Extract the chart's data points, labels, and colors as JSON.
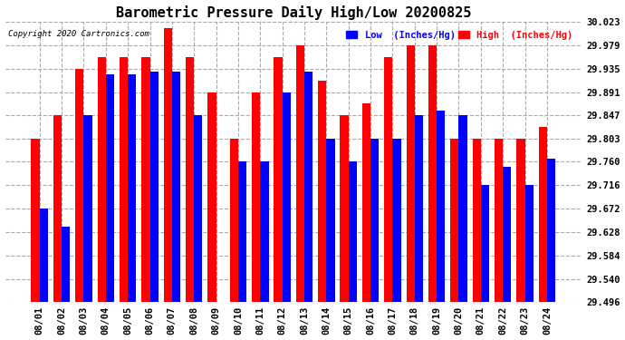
{
  "title": "Barometric Pressure Daily High/Low 20200825",
  "copyright": "Copyright 2020 Cartronics.com",
  "legend_low": "Low  (Inches/Hg)",
  "legend_high": "High  (Inches/Hg)",
  "dates": [
    "08/01",
    "08/02",
    "08/03",
    "08/04",
    "08/05",
    "08/06",
    "08/07",
    "08/08",
    "08/09",
    "08/10",
    "08/11",
    "08/12",
    "08/13",
    "08/14",
    "08/15",
    "08/16",
    "08/17",
    "08/18",
    "08/19",
    "08/20",
    "08/21",
    "08/22",
    "08/23",
    "08/24"
  ],
  "low": [
    29.672,
    29.638,
    29.847,
    29.925,
    29.925,
    29.93,
    29.93,
    29.847,
    29.496,
    29.76,
    29.76,
    29.891,
    29.93,
    29.803,
    29.76,
    29.803,
    29.803,
    29.847,
    29.857,
    29.847,
    29.716,
    29.75,
    29.716,
    29.765
  ],
  "high": [
    29.803,
    29.847,
    29.935,
    29.957,
    29.957,
    29.957,
    30.011,
    29.957,
    29.891,
    29.803,
    29.891,
    29.957,
    29.979,
    29.913,
    29.847,
    29.869,
    29.957,
    29.979,
    29.979,
    29.803,
    29.803,
    29.803,
    29.803,
    29.825
  ],
  "ylim_min": 29.496,
  "ylim_max": 30.023,
  "yticks": [
    29.496,
    29.54,
    29.584,
    29.628,
    29.672,
    29.716,
    29.76,
    29.803,
    29.847,
    29.891,
    29.935,
    29.979,
    30.023
  ],
  "bar_width": 0.38,
  "low_color": "#0000ff",
  "high_color": "#ff0000",
  "background_color": "#ffffff",
  "grid_color": "#aaaaaa",
  "title_color": "#000000",
  "copyright_color": "#000000",
  "legend_low_color": "#0000ff",
  "legend_high_color": "#ff0000"
}
